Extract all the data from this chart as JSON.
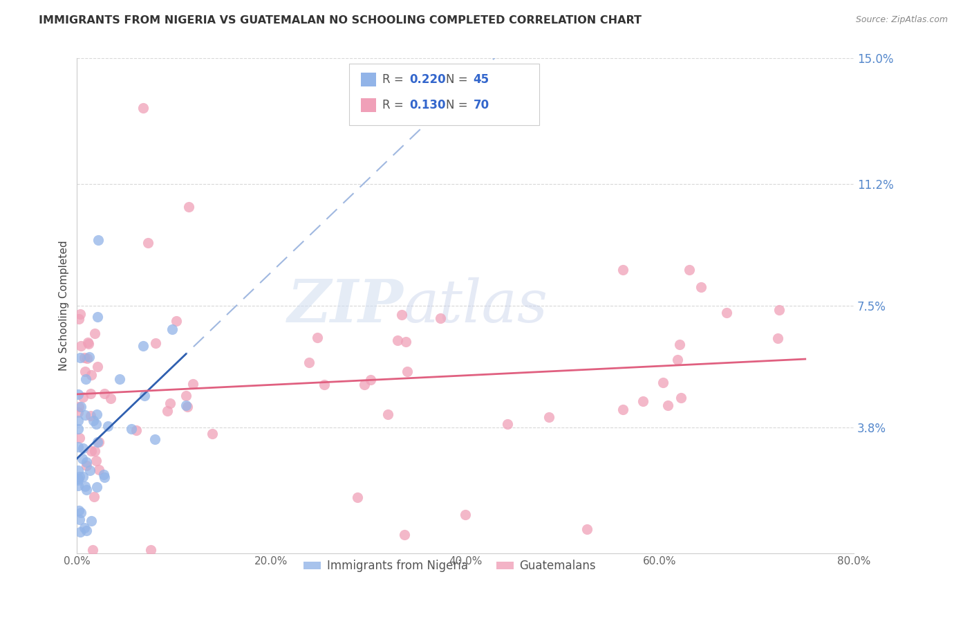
{
  "title": "IMMIGRANTS FROM NIGERIA VS GUATEMALAN NO SCHOOLING COMPLETED CORRELATION CHART",
  "source": "Source: ZipAtlas.com",
  "ylabel": "No Schooling Completed",
  "xlim": [
    0.0,
    0.8
  ],
  "ylim": [
    0.0,
    0.15
  ],
  "xtick_labels": [
    "0.0%",
    "20.0%",
    "40.0%",
    "60.0%",
    "80.0%"
  ],
  "xtick_values": [
    0.0,
    0.2,
    0.4,
    0.6,
    0.8
  ],
  "ytick_right_labels": [
    "15.0%",
    "11.2%",
    "7.5%",
    "3.8%"
  ],
  "ytick_right_values": [
    0.15,
    0.112,
    0.075,
    0.038
  ],
  "nigeria_color": "#92b4e8",
  "guatemala_color": "#f0a0b8",
  "nigeria_line_color": "#3060b0",
  "guatemala_line_color": "#e06080",
  "nigeria_dash_color": "#a0b8e0",
  "watermark_zip": "ZIP",
  "watermark_atlas": "atlas",
  "nigeria_R": 0.22,
  "nigeria_N": 45,
  "guatemala_R": 0.13,
  "guatemala_N": 70,
  "background_color": "#ffffff",
  "grid_color": "#d8d8d8",
  "legend_R_color": "#3366cc",
  "legend_N_color": "#3366cc",
  "legend_text_color": "#555555",
  "right_axis_color": "#5588cc",
  "source_color": "#888888",
  "bottom_label_nigeria": "Immigrants from Nigeria",
  "bottom_label_guatemala": "Guatemalans"
}
